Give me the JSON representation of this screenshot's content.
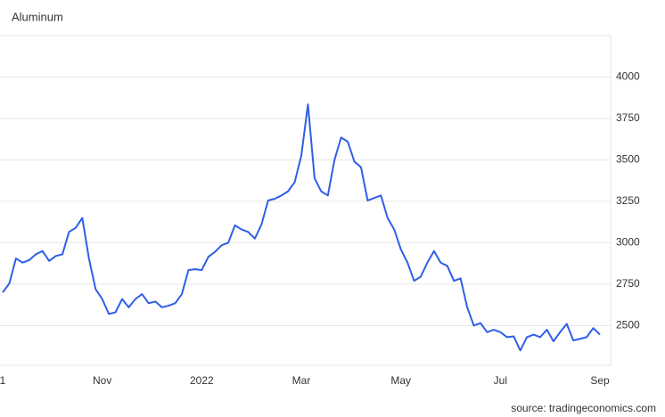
{
  "chart_data": {
    "type": "line",
    "title": "Aluminum",
    "source": "source: tradingeconomics.com",
    "categories": [
      "1",
      null,
      null,
      null,
      null,
      null,
      null,
      null,
      null,
      null,
      null,
      null,
      null,
      null,
      null,
      "Nov",
      null,
      null,
      null,
      null,
      null,
      null,
      null,
      null,
      null,
      null,
      null,
      null,
      null,
      null,
      "2022",
      null,
      null,
      null,
      null,
      null,
      null,
      null,
      null,
      null,
      null,
      null,
      null,
      null,
      null,
      "Mar",
      null,
      null,
      null,
      null,
      null,
      null,
      null,
      null,
      null,
      null,
      null,
      null,
      null,
      null,
      "May",
      null,
      null,
      null,
      null,
      null,
      null,
      null,
      null,
      null,
      null,
      null,
      null,
      null,
      null,
      "Jul",
      null,
      null,
      null,
      null,
      null,
      null,
      null,
      null,
      null,
      null,
      null,
      null,
      null,
      null,
      "Sep"
    ],
    "values": [
      2700,
      2754,
      2905,
      2880,
      2895,
      2930,
      2950,
      2890,
      2920,
      2930,
      3065,
      3090,
      3150,
      2905,
      2720,
      2660,
      2570,
      2580,
      2660,
      2610,
      2660,
      2690,
      2635,
      2645,
      2610,
      2620,
      2635,
      2690,
      2835,
      2840,
      2835,
      2915,
      2945,
      2985,
      3000,
      3105,
      3080,
      3065,
      3025,
      3110,
      3255,
      3265,
      3285,
      3310,
      3365,
      3525,
      3835,
      3390,
      3310,
      3285,
      3500,
      3635,
      3610,
      3490,
      3455,
      3255,
      3270,
      3285,
      3150,
      3080,
      2960,
      2880,
      2770,
      2795,
      2880,
      2950,
      2880,
      2860,
      2770,
      2785,
      2610,
      2500,
      2515,
      2460,
      2475,
      2460,
      2430,
      2435,
      2350,
      2430,
      2445,
      2430,
      2475,
      2405,
      2460,
      2510,
      2410,
      2420,
      2430,
      2485,
      2445
    ],
    "color": "#2f5fe6",
    "ylim": [
      2260,
      4250
    ],
    "yticks": [
      2500,
      2750,
      3000,
      3250,
      3500,
      3750,
      4000
    ],
    "grid": true
  }
}
